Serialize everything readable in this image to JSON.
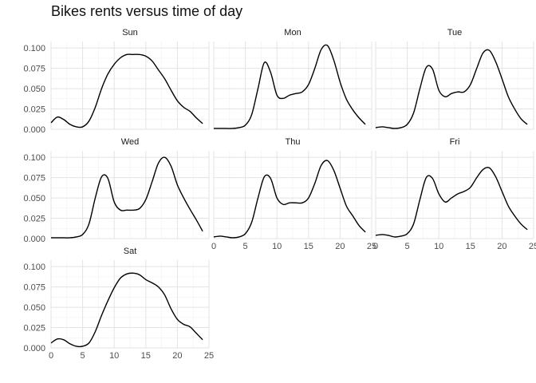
{
  "chart_data": {
    "type": "line",
    "title": "Bikes rents versus time of day",
    "xlabel": "",
    "ylabel": "",
    "xlim": [
      0,
      25
    ],
    "ylim": [
      0,
      0.108
    ],
    "x_ticks": [
      0,
      5,
      10,
      15,
      20,
      25
    ],
    "y_ticks": [
      0,
      0.025,
      0.05,
      0.075,
      0.1
    ],
    "y_tick_labels": [
      "0.000",
      "0.025",
      "0.050",
      "0.075",
      "0.100"
    ],
    "grid": true,
    "legend": "none",
    "x": [
      0,
      1,
      2,
      3,
      4,
      5,
      6,
      7,
      8,
      9,
      10,
      11,
      12,
      13,
      14,
      15,
      16,
      17,
      18,
      19,
      20,
      21,
      22,
      23,
      24
    ],
    "panels": [
      {
        "name": "Sun",
        "values": [
          0.008,
          0.015,
          0.012,
          0.006,
          0.003,
          0.003,
          0.01,
          0.027,
          0.05,
          0.068,
          0.08,
          0.088,
          0.092,
          0.092,
          0.092,
          0.09,
          0.084,
          0.073,
          0.062,
          0.048,
          0.035,
          0.027,
          0.022,
          0.014,
          0.007
        ]
      },
      {
        "name": "Mon",
        "values": [
          0.001,
          0.001,
          0.001,
          0.001,
          0.002,
          0.005,
          0.018,
          0.05,
          0.082,
          0.07,
          0.042,
          0.038,
          0.042,
          0.044,
          0.046,
          0.055,
          0.075,
          0.098,
          0.103,
          0.085,
          0.058,
          0.037,
          0.024,
          0.014,
          0.006
        ]
      },
      {
        "name": "Tue",
        "values": [
          0.002,
          0.003,
          0.002,
          0.001,
          0.002,
          0.006,
          0.02,
          0.05,
          0.076,
          0.074,
          0.048,
          0.04,
          0.044,
          0.046,
          0.046,
          0.055,
          0.075,
          0.094,
          0.097,
          0.083,
          0.062,
          0.04,
          0.025,
          0.013,
          0.006
        ]
      },
      {
        "name": "Wed",
        "values": [
          0.001,
          0.001,
          0.001,
          0.001,
          0.002,
          0.005,
          0.018,
          0.05,
          0.076,
          0.074,
          0.045,
          0.035,
          0.035,
          0.035,
          0.037,
          0.048,
          0.07,
          0.093,
          0.1,
          0.089,
          0.066,
          0.05,
          0.036,
          0.023,
          0.009
        ]
      },
      {
        "name": "Thu",
        "values": [
          0.002,
          0.003,
          0.002,
          0.001,
          0.002,
          0.006,
          0.02,
          0.05,
          0.076,
          0.074,
          0.05,
          0.042,
          0.044,
          0.044,
          0.044,
          0.05,
          0.068,
          0.09,
          0.096,
          0.084,
          0.062,
          0.04,
          0.028,
          0.016,
          0.008
        ]
      },
      {
        "name": "Fri",
        "values": [
          0.004,
          0.005,
          0.004,
          0.002,
          0.003,
          0.006,
          0.018,
          0.048,
          0.075,
          0.074,
          0.055,
          0.045,
          0.05,
          0.055,
          0.058,
          0.063,
          0.075,
          0.085,
          0.087,
          0.076,
          0.058,
          0.04,
          0.028,
          0.018,
          0.011
        ]
      },
      {
        "name": "Sat",
        "values": [
          0.006,
          0.011,
          0.01,
          0.005,
          0.002,
          0.002,
          0.006,
          0.02,
          0.04,
          0.058,
          0.074,
          0.086,
          0.091,
          0.092,
          0.09,
          0.084,
          0.08,
          0.075,
          0.065,
          0.048,
          0.035,
          0.029,
          0.026,
          0.018,
          0.01
        ]
      }
    ]
  }
}
